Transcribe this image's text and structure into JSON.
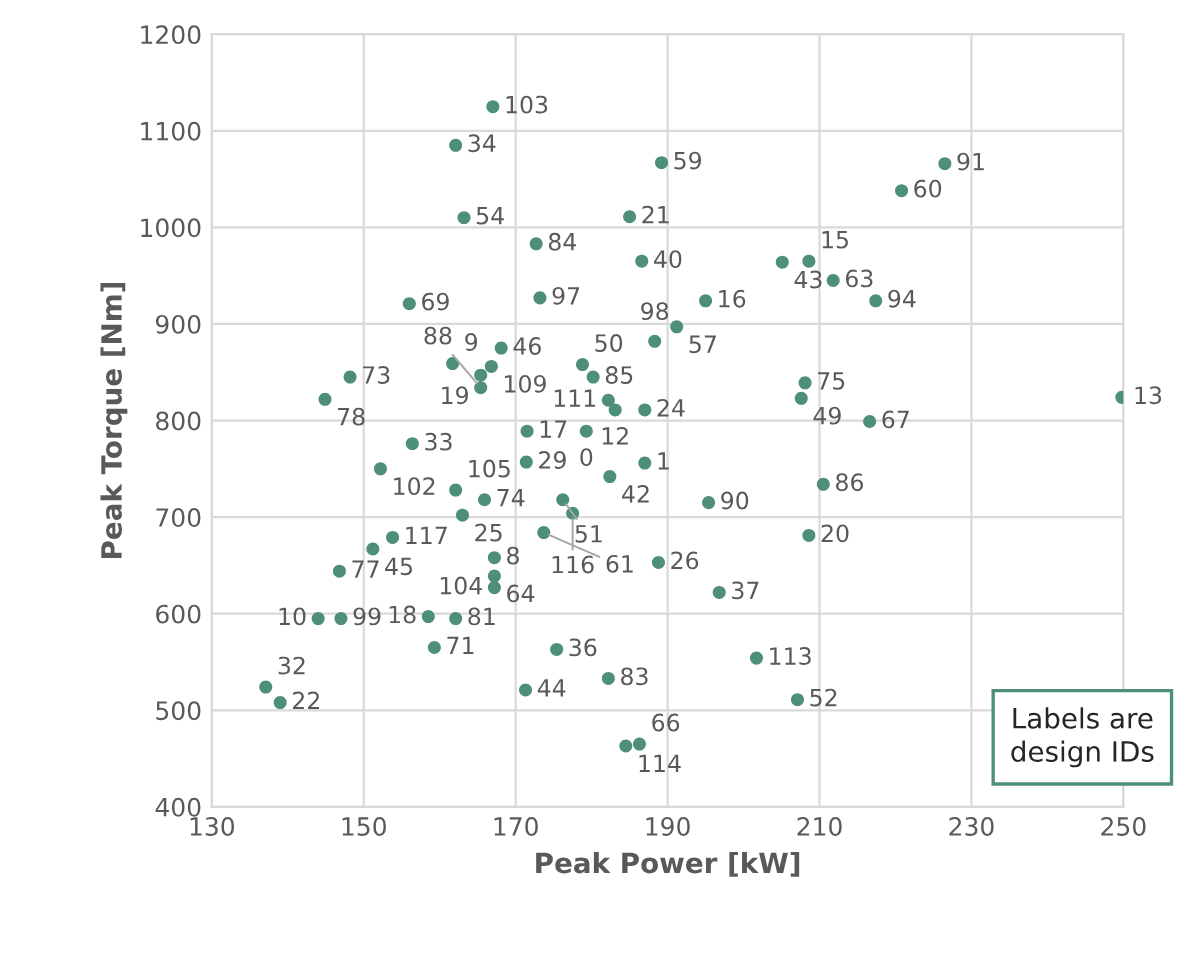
{
  "chart_data": {
    "type": "scatter",
    "xlabel": "Peak Power [kW]",
    "ylabel": "Peak Torque [Nm]",
    "xlim": [
      130,
      250
    ],
    "xticks": [
      130,
      150,
      170,
      190,
      210,
      230,
      250
    ],
    "ylim": [
      400,
      1200
    ],
    "yticks": [
      400,
      500,
      600,
      700,
      800,
      900,
      1000,
      1100,
      1200
    ],
    "grid": true,
    "legend": false,
    "marker": "circle",
    "series": [
      {
        "color": "#4e8f78",
        "x": [
          167.0,
          162.1,
          189.2,
          163.2,
          185.0,
          172.7,
          186.6,
          156.0,
          173.2,
          168.1,
          161.7,
          166.8,
          165.4,
          178.8,
          180.2,
          165.4,
          148.2,
          144.9,
          182.2,
          183.1,
          187.0,
          171.5,
          179.3,
          156.4,
          152.2,
          171.4,
          182.4,
          187.0,
          162.1,
          165.9,
          176.2,
          177.5,
          163.0,
          173.7,
          153.8,
          151.2,
          167.2,
          146.8,
          167.2,
          167.2,
          188.8,
          144.0,
          147.0,
          158.5,
          162.1,
          159.3,
          175.4,
          182.2,
          171.3,
          137.1,
          139.0,
          184.5,
          186.3,
          210.5,
          195.4,
          208.6,
          196.8,
          201.7,
          207.1,
          226.5,
          220.8,
          208.6,
          205.1,
          211.8,
          217.4,
          195.0,
          191.2,
          188.3,
          208.1,
          207.6,
          216.6,
          249.8
        ],
        "values": [
          1125,
          1085,
          1067,
          1010,
          1011,
          983,
          965,
          921,
          927,
          875,
          859,
          856,
          847,
          858,
          845,
          834,
          845,
          822,
          821,
          811,
          811,
          789,
          789,
          776,
          750,
          757,
          742,
          756,
          728,
          718,
          718,
          704,
          702,
          684,
          679,
          667,
          658,
          644,
          639,
          627,
          653,
          595,
          595,
          597,
          595,
          565,
          563,
          533,
          521,
          524,
          508,
          463,
          465,
          734,
          715,
          681,
          622,
          554,
          511,
          1066,
          1038,
          965,
          964,
          945,
          924,
          924,
          897,
          882,
          839,
          823,
          799,
          824
        ]
      }
    ],
    "annotations": [
      "Labels are design IDs",
      {
        "text": "103",
        "x": 167.0,
        "y": 1125
      },
      {
        "text": "34",
        "x": 162.1,
        "y": 1085
      },
      {
        "text": "59",
        "x": 189.2,
        "y": 1067
      },
      {
        "text": "54",
        "x": 163.2,
        "y": 1010
      },
      {
        "text": "21",
        "x": 185.0,
        "y": 1011
      },
      {
        "text": "84",
        "x": 172.7,
        "y": 983
      },
      {
        "text": "40",
        "x": 186.6,
        "y": 965
      },
      {
        "text": "69",
        "x": 156.0,
        "y": 921
      },
      {
        "text": "97",
        "x": 173.2,
        "y": 927
      },
      {
        "text": "46",
        "x": 168.1,
        "y": 875
      },
      {
        "text": "9",
        "x": 161.7,
        "y": 859
      },
      {
        "text": "109",
        "x": 166.8,
        "y": 856
      },
      {
        "text": "19",
        "x": 165.4,
        "y": 847
      },
      {
        "text": "50",
        "x": 178.8,
        "y": 858
      },
      {
        "text": "85",
        "x": 180.2,
        "y": 845
      },
      {
        "text": "88",
        "x": 165.4,
        "y": 834
      },
      {
        "text": "73",
        "x": 148.2,
        "y": 845
      },
      {
        "text": "78",
        "x": 144.9,
        "y": 822
      },
      {
        "text": "111",
        "x": 182.2,
        "y": 821
      },
      {
        "text": "12",
        "x": 183.1,
        "y": 811
      },
      {
        "text": "24",
        "x": 187.0,
        "y": 811
      },
      {
        "text": "17",
        "x": 171.5,
        "y": 789
      },
      {
        "text": "0",
        "x": 179.3,
        "y": 789
      },
      {
        "text": "33",
        "x": 156.4,
        "y": 776
      },
      {
        "text": "102",
        "x": 152.2,
        "y": 750
      },
      {
        "text": "29",
        "x": 171.4,
        "y": 757
      },
      {
        "text": "42",
        "x": 182.4,
        "y": 742
      },
      {
        "text": "1",
        "x": 187.0,
        "y": 756
      },
      {
        "text": "105",
        "x": 162.1,
        "y": 728
      },
      {
        "text": "74",
        "x": 165.9,
        "y": 718
      },
      {
        "text": "51",
        "x": 176.2,
        "y": 718
      },
      {
        "text": "116",
        "x": 177.5,
        "y": 704
      },
      {
        "text": "25",
        "x": 163.0,
        "y": 702
      },
      {
        "text": "61",
        "x": 173.7,
        "y": 684
      },
      {
        "text": "117",
        "x": 153.8,
        "y": 679
      },
      {
        "text": "45",
        "x": 151.2,
        "y": 667
      },
      {
        "text": "8",
        "x": 167.2,
        "y": 658
      },
      {
        "text": "77",
        "x": 146.8,
        "y": 644
      },
      {
        "text": "64",
        "x": 167.2,
        "y": 639
      },
      {
        "text": "104",
        "x": 167.2,
        "y": 627
      },
      {
        "text": "26",
        "x": 188.8,
        "y": 653
      },
      {
        "text": "10",
        "x": 144.0,
        "y": 595
      },
      {
        "text": "99",
        "x": 147.0,
        "y": 595
      },
      {
        "text": "18",
        "x": 158.5,
        "y": 597
      },
      {
        "text": "81",
        "x": 162.1,
        "y": 595
      },
      {
        "text": "71",
        "x": 159.3,
        "y": 565
      },
      {
        "text": "36",
        "x": 175.4,
        "y": 563
      },
      {
        "text": "83",
        "x": 182.2,
        "y": 533
      },
      {
        "text": "44",
        "x": 171.3,
        "y": 521
      },
      {
        "text": "32",
        "x": 137.1,
        "y": 524
      },
      {
        "text": "22",
        "x": 139.0,
        "y": 508
      },
      {
        "text": "114",
        "x": 184.5,
        "y": 463
      },
      {
        "text": "66",
        "x": 186.3,
        "y": 465
      },
      {
        "text": "86",
        "x": 210.5,
        "y": 734
      },
      {
        "text": "90",
        "x": 195.4,
        "y": 715
      },
      {
        "text": "20",
        "x": 208.6,
        "y": 681
      },
      {
        "text": "37",
        "x": 196.8,
        "y": 622
      },
      {
        "text": "113",
        "x": 201.7,
        "y": 554
      },
      {
        "text": "52",
        "x": 207.1,
        "y": 511
      },
      {
        "text": "91",
        "x": 226.5,
        "y": 1066
      },
      {
        "text": "60",
        "x": 220.8,
        "y": 1038
      },
      {
        "text": "15",
        "x": 208.6,
        "y": 965
      },
      {
        "text": "43",
        "x": 205.1,
        "y": 964
      },
      {
        "text": "63",
        "x": 211.8,
        "y": 945
      },
      {
        "text": "94",
        "x": 217.4,
        "y": 924
      },
      {
        "text": "16",
        "x": 195.0,
        "y": 924
      },
      {
        "text": "57",
        "x": 191.2,
        "y": 897
      },
      {
        "text": "98",
        "x": 188.3,
        "y": 882
      },
      {
        "text": "75",
        "x": 208.1,
        "y": 839
      },
      {
        "text": "49",
        "x": 207.6,
        "y": 823
      },
      {
        "text": "67",
        "x": 216.6,
        "y": 799
      },
      {
        "text": "13",
        "x": 249.8,
        "y": 824
      }
    ]
  }
}
